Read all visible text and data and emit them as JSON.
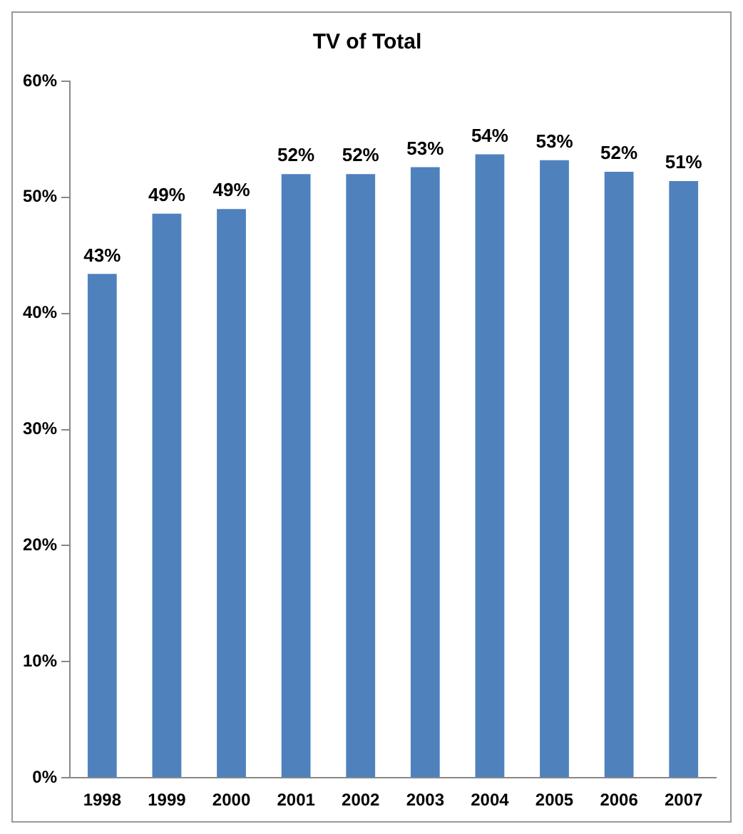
{
  "chart_data": {
    "type": "bar",
    "title": "TV of Total",
    "categories": [
      "1998",
      "1999",
      "2000",
      "2001",
      "2002",
      "2003",
      "2004",
      "2005",
      "2006",
      "2007"
    ],
    "values": [
      43.4,
      48.6,
      49.0,
      52.0,
      52.0,
      52.6,
      53.7,
      53.2,
      52.2,
      51.4
    ],
    "value_labels": [
      "43%",
      "49%",
      "49%",
      "52%",
      "52%",
      "53%",
      "54%",
      "53%",
      "52%",
      "51%"
    ],
    "color": "#4f81bd",
    "ylim": [
      0,
      60
    ],
    "yticks": [
      {
        "value": 0,
        "label": "0%"
      },
      {
        "value": 10,
        "label": "10%"
      },
      {
        "value": 20,
        "label": "20%"
      },
      {
        "value": 30,
        "label": "30%"
      },
      {
        "value": 40,
        "label": "40%"
      },
      {
        "value": 50,
        "label": "50%"
      },
      {
        "value": 60,
        "label": "60%"
      }
    ],
    "grid": false,
    "legend": false
  }
}
